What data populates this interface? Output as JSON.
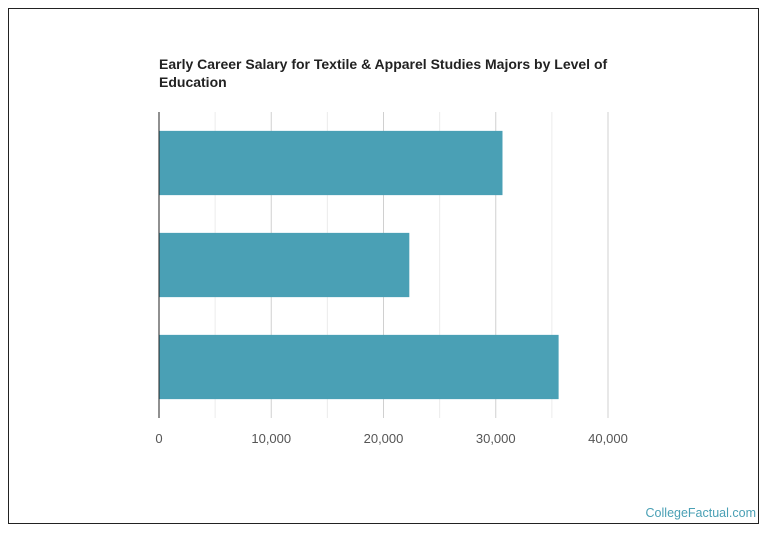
{
  "chart_data": {
    "type": "bar",
    "orientation": "horizontal",
    "title": "Early Career Salary for Textile & Apparel Studies Majors by Level of Education",
    "categories": [
      "",
      "",
      ""
    ],
    "values": [
      30600,
      22300,
      35600
    ],
    "xlim": [
      0,
      40000
    ],
    "xticks": [
      "0",
      "10,000",
      "20,000",
      "30,000",
      "40,000"
    ],
    "grid": true,
    "bar_color": "#4aa0b5"
  },
  "watermark": "CollegeFactual.com"
}
